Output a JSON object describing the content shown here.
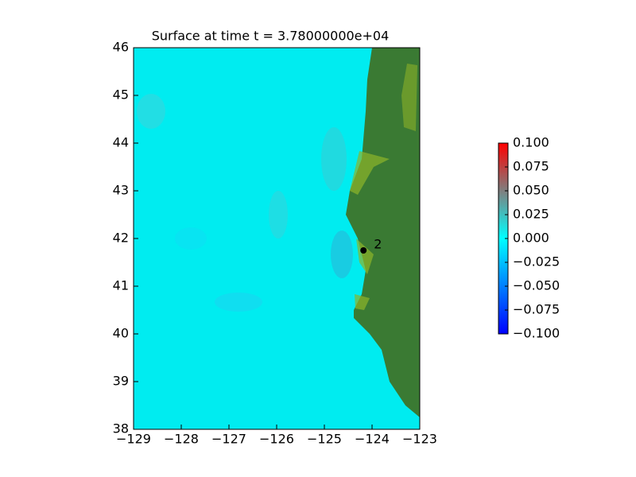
{
  "chart_data": {
    "type": "heatmap",
    "title": "Surface at time t = 3.78000000e+04",
    "xlim": [
      -129,
      -123
    ],
    "ylim": [
      38,
      46
    ],
    "xticks": [
      {
        "value": -129,
        "label": "−129"
      },
      {
        "value": -128,
        "label": "−128"
      },
      {
        "value": -127,
        "label": "−127"
      },
      {
        "value": -126,
        "label": "−126"
      },
      {
        "value": -125,
        "label": "−125"
      },
      {
        "value": -124,
        "label": "−124"
      },
      {
        "value": -123,
        "label": "−123"
      }
    ],
    "yticks": [
      38,
      39,
      40,
      41,
      42,
      43,
      44,
      45,
      46
    ],
    "colorbar": {
      "clim": [
        -0.1,
        0.1
      ],
      "colors": [
        "#0000ff",
        "#00ffff",
        "#7f7f7f",
        "#ff0000"
      ],
      "ticks": [
        {
          "value": 0.1,
          "label": "0.100"
        },
        {
          "value": 0.075,
          "label": "0.075"
        },
        {
          "value": 0.05,
          "label": "0.050"
        },
        {
          "value": 0.025,
          "label": "0.025"
        },
        {
          "value": 0,
          "label": "0.000"
        },
        {
          "value": -0.025,
          "label": "−0.025"
        },
        {
          "value": -0.05,
          "label": "−0.050"
        },
        {
          "value": -0.075,
          "label": "−0.075"
        },
        {
          "value": -0.1,
          "label": "−0.100"
        }
      ]
    },
    "gauges": [
      {
        "label": "2",
        "x": -124.18,
        "y": 41.75
      }
    ]
  }
}
